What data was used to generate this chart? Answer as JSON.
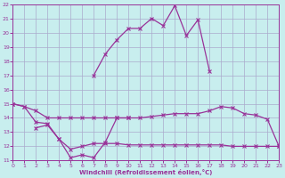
{
  "xlabel": "Windchill (Refroidissement éolien,°C)",
  "bg_color": "#c8eeee",
  "grid_color": "#aaaacc",
  "line_color": "#993399",
  "ylim": [
    11,
    22
  ],
  "xlim": [
    0,
    23
  ],
  "line1_x": [
    0,
    1,
    2,
    3,
    4,
    5,
    6,
    7,
    8,
    9,
    10
  ],
  "line1_y": [
    15.0,
    14.8,
    13.7,
    13.6,
    12.5,
    11.2,
    11.4,
    11.2,
    12.3,
    14.0,
    14.0
  ],
  "line2_x": [
    0,
    1,
    2,
    3,
    4,
    5,
    6,
    7,
    8,
    9,
    10,
    11,
    12,
    13,
    14,
    15,
    16,
    17,
    18,
    19,
    20,
    21,
    22,
    23
  ],
  "line2_y": [
    15.0,
    14.8,
    14.5,
    14.0,
    14.0,
    14.0,
    14.0,
    14.0,
    14.0,
    14.0,
    14.0,
    14.0,
    14.1,
    14.2,
    14.3,
    14.3,
    14.3,
    14.5,
    14.8,
    14.7,
    14.3,
    14.2,
    13.9,
    12.0
  ],
  "line3_x": [
    7,
    8,
    9,
    10,
    11,
    12,
    13,
    14,
    15,
    16,
    17
  ],
  "line3_y": [
    17.0,
    18.5,
    19.5,
    20.3,
    20.3,
    21.0,
    20.5,
    21.9,
    19.8,
    20.9,
    17.3
  ],
  "line4_x": [
    2,
    3,
    4,
    5,
    6,
    7,
    8,
    9,
    10,
    11,
    12,
    13,
    14,
    15,
    16,
    17,
    18,
    19,
    20,
    21,
    22,
    23
  ],
  "line4_y": [
    13.3,
    13.5,
    12.5,
    11.8,
    12.0,
    12.2,
    12.2,
    12.2,
    12.1,
    12.1,
    12.1,
    12.1,
    12.1,
    12.1,
    12.1,
    12.1,
    12.1,
    12.0,
    12.0,
    12.0,
    12.0,
    12.0
  ]
}
